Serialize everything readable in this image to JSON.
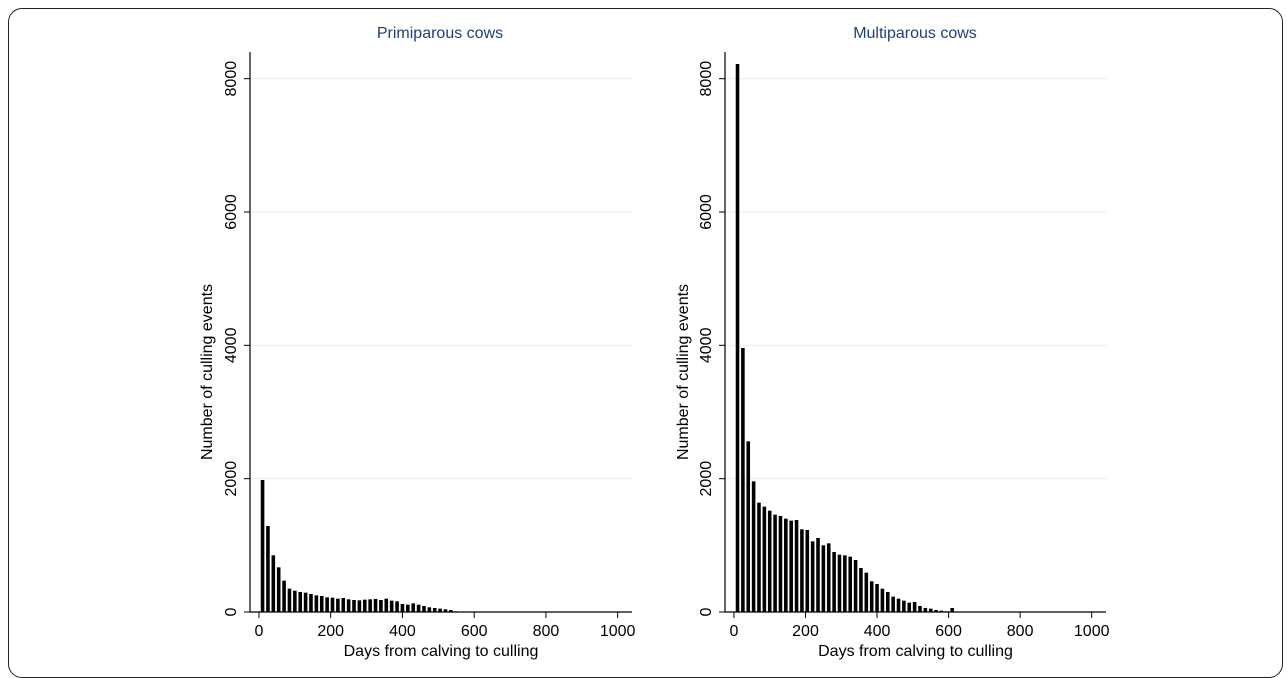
{
  "chart_data": [
    {
      "type": "bar",
      "title": "Primiparous cows",
      "xlabel": "Days from calving to culling",
      "ylabel": "Number of culling events",
      "xlim": [
        -25,
        1040
      ],
      "ylim": [
        0,
        8400
      ],
      "x_ticks": [
        0,
        200,
        400,
        600,
        800,
        1000
      ],
      "y_ticks": [
        0,
        2000,
        4000,
        6000,
        8000
      ],
      "grid": "horizontal",
      "bar_width_days": 10,
      "x": [
        10,
        25,
        40,
        55,
        70,
        85,
        100,
        115,
        130,
        145,
        160,
        175,
        190,
        205,
        220,
        235,
        250,
        265,
        280,
        295,
        310,
        325,
        340,
        355,
        370,
        385,
        400,
        415,
        430,
        445,
        460,
        475,
        490,
        505,
        520,
        535,
        550
      ],
      "values": [
        1980,
        1290,
        850,
        670,
        470,
        350,
        320,
        300,
        290,
        270,
        250,
        240,
        220,
        215,
        200,
        210,
        190,
        180,
        175,
        185,
        190,
        195,
        180,
        200,
        170,
        160,
        120,
        110,
        130,
        110,
        90,
        70,
        60,
        50,
        40,
        30,
        10
      ]
    },
    {
      "type": "bar",
      "title": "Multiparous cows",
      "xlabel": "Days from calving to culling",
      "ylabel": "Number of culling events",
      "xlim": [
        -25,
        1040
      ],
      "ylim": [
        0,
        8400
      ],
      "x_ticks": [
        0,
        200,
        400,
        600,
        800,
        1000
      ],
      "y_ticks": [
        0,
        2000,
        4000,
        6000,
        8000
      ],
      "grid": "horizontal",
      "bar_width_days": 10,
      "x": [
        10,
        25,
        40,
        55,
        70,
        85,
        100,
        115,
        130,
        145,
        160,
        175,
        190,
        205,
        220,
        235,
        250,
        265,
        280,
        295,
        310,
        325,
        340,
        355,
        370,
        385,
        400,
        415,
        430,
        445,
        460,
        475,
        490,
        505,
        520,
        535,
        550,
        565,
        580,
        595,
        610
      ],
      "values": [
        8220,
        3960,
        2560,
        1960,
        1640,
        1580,
        1520,
        1460,
        1440,
        1400,
        1370,
        1380,
        1240,
        1230,
        1060,
        1110,
        1000,
        1030,
        900,
        860,
        850,
        830,
        780,
        660,
        590,
        460,
        420,
        350,
        300,
        230,
        200,
        170,
        140,
        150,
        90,
        60,
        50,
        30,
        20,
        10,
        60
      ]
    }
  ]
}
